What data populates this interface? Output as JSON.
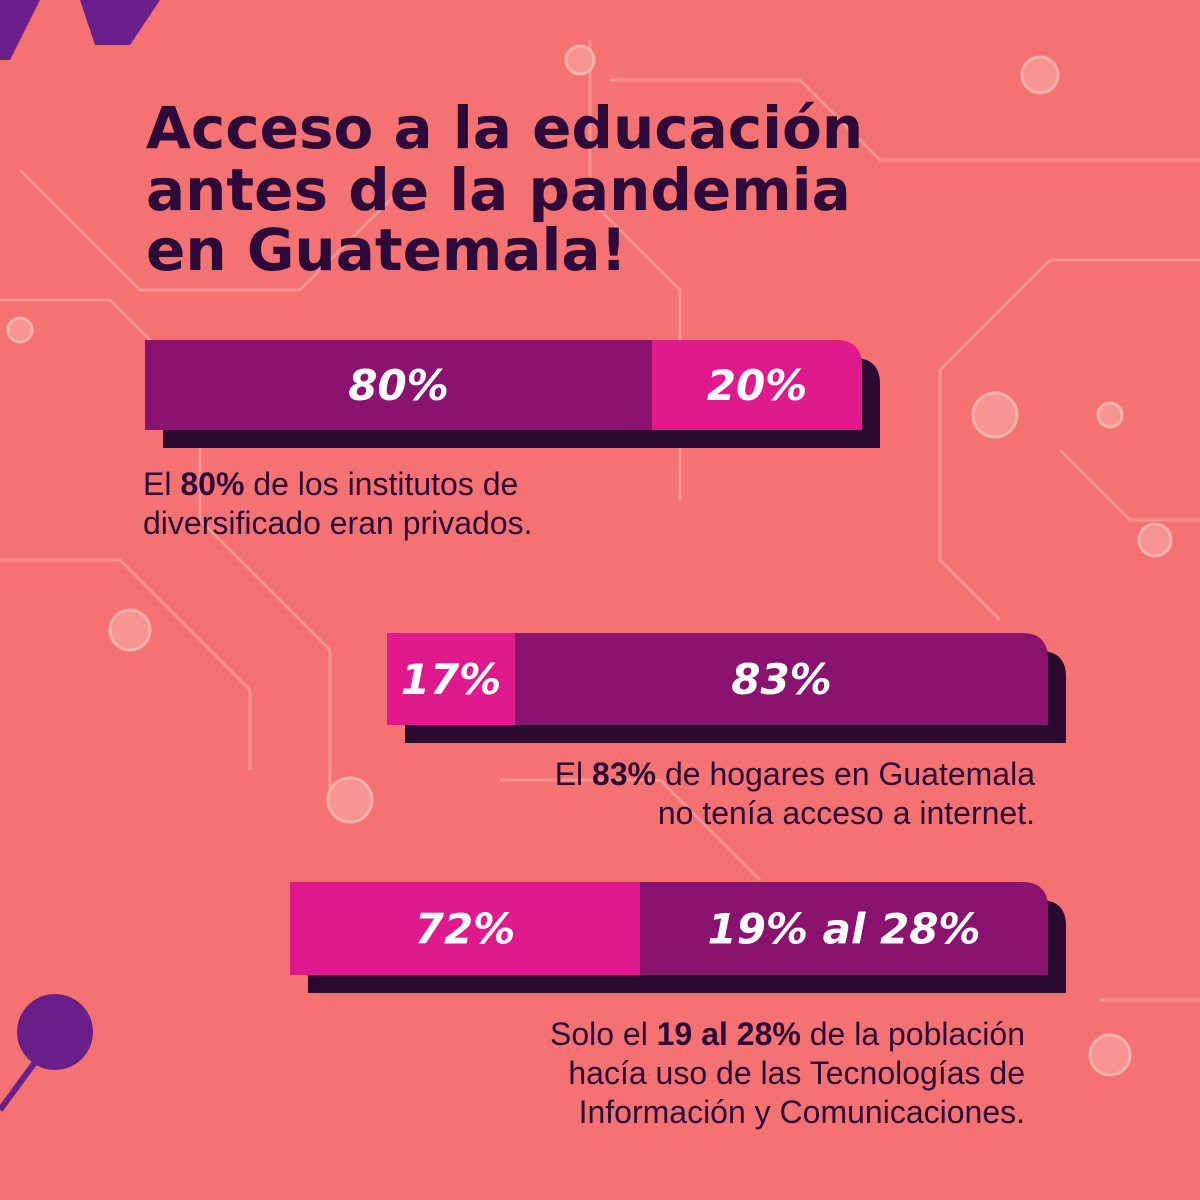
{
  "title_lines": [
    "Acceso a la educación",
    "antes de la pandemia",
    "en Guatemala!"
  ],
  "blocks": [
    {
      "segments": [
        "80%",
        "20%"
      ],
      "caption": [
        [
          "El ",
          "80%",
          " de los institutos de"
        ],
        [
          "diversificado eran privados."
        ]
      ]
    },
    {
      "segments": [
        "17%",
        "83%"
      ],
      "caption": [
        [
          "El ",
          "83%",
          " de hogares en Guatemala"
        ],
        [
          "no tenía acceso a internet."
        ]
      ]
    },
    {
      "segments": [
        "72%",
        "19% al 28%"
      ],
      "caption": [
        [
          "Solo el ",
          "19 al 28%",
          " de la población"
        ],
        [
          "hacía uso de las Tecnologías de"
        ],
        [
          "Información y Comunicaciones."
        ]
      ]
    }
  ]
}
